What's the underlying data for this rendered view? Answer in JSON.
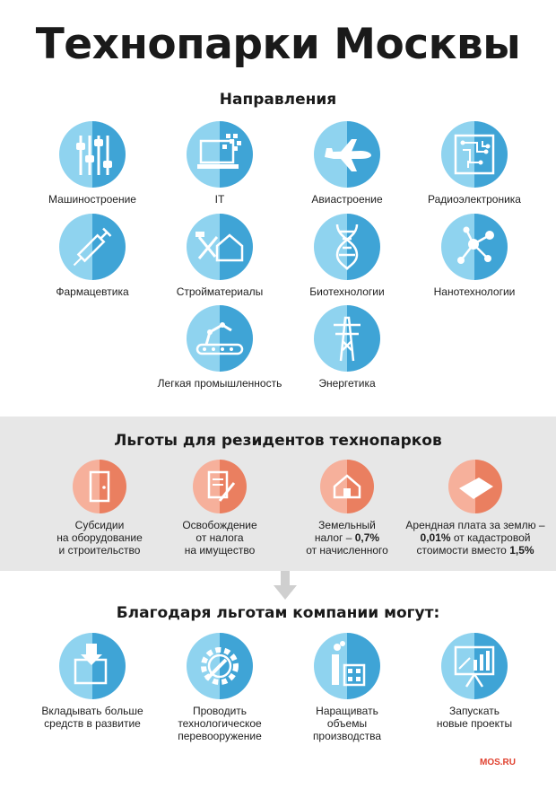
{
  "title": "Технопарки Москвы",
  "directions": {
    "heading": "Направления",
    "items": [
      {
        "label": "Машиностроение",
        "icon": "sliders-icon"
      },
      {
        "label": "IT",
        "icon": "laptop-icon"
      },
      {
        "label": "Авиастроение",
        "icon": "airplane-icon"
      },
      {
        "label": "Радиоэлектроника",
        "icon": "circuit-board-icon"
      },
      {
        "label": "Фармацевтика",
        "icon": "syringe-icon"
      },
      {
        "label": "Стройматериалы",
        "icon": "tools-house-icon"
      },
      {
        "label": "Биотехнологии",
        "icon": "dna-icon"
      },
      {
        "label": "Нанотехнологии",
        "icon": "molecule-icon"
      },
      {
        "label": "Легкая промышленность",
        "icon": "robot-arm-conveyor-icon"
      },
      {
        "label": "Энергетика",
        "icon": "power-tower-icon"
      }
    ]
  },
  "benefits": {
    "heading": "Льготы для резидентов технопарков",
    "items": [
      {
        "line1": "Субсидии",
        "line2": "на оборудование",
        "line3": "и строительство",
        "icon": "door-icon"
      },
      {
        "line1": "Освобождение",
        "line2": "от налога",
        "line3": "на имущество",
        "icon": "document-pen-icon"
      },
      {
        "line1": "Земельный",
        "line2": "налог – ",
        "line2_bold": "0,7%",
        "line3": "от начисленного",
        "icon": "house-land-icon"
      },
      {
        "line1": "Арендная плата за землю –",
        "line2_bold": "0,01%",
        "line2": " от кадастровой",
        "line3": "стоимости вместо ",
        "line3_bold": "1,5%",
        "icon": "land-plot-icon"
      }
    ]
  },
  "outcomes": {
    "heading": "Благодаря льготам компании могут:",
    "items": [
      {
        "line1": "Вкладывать больше",
        "line2": "средств в развитие",
        "line3": "",
        "icon": "invest-box-icon"
      },
      {
        "line1": "Проводить",
        "line2": "технологическое",
        "line3": "перевооружение",
        "icon": "gear-wrench-icon"
      },
      {
        "line1": "Наращивать",
        "line2": "объемы",
        "line3": "производства",
        "icon": "factory-icon"
      },
      {
        "line1": "Запускать",
        "line2": "новые проекты",
        "line3": "",
        "icon": "presentation-board-icon"
      }
    ]
  },
  "logo": "MOS.RU",
  "colors": {
    "blue_light": "#8fd3ef",
    "blue_dark": "#3fa4d6",
    "coral_light": "#f6b09b",
    "coral_dark": "#ea7f60",
    "band": "#e7e7e7"
  }
}
